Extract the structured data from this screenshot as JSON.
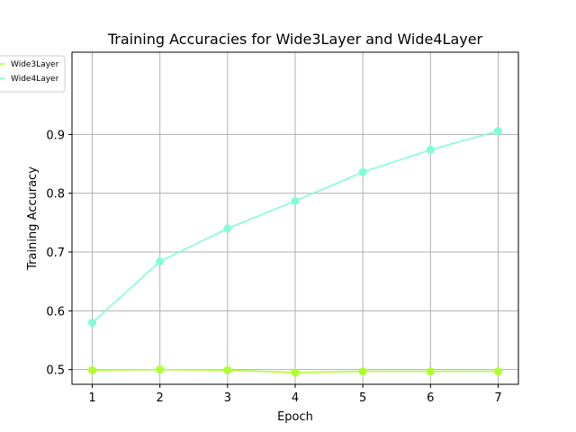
{
  "chart_data": {
    "type": "line",
    "title": "Training Accuracies for Wide3Layer and Wide4Layer",
    "xlabel": "Epoch",
    "ylabel": "Training Accuracy",
    "x": [
      1,
      2,
      3,
      4,
      5,
      6,
      7
    ],
    "xlim": [
      0.7,
      7.3
    ],
    "ylim": [
      0.475,
      1.04
    ],
    "xticks": [
      1,
      2,
      3,
      4,
      5,
      6,
      7
    ],
    "yticks": [
      0.5,
      0.6,
      0.7,
      0.8,
      0.9
    ],
    "ytick_labels": [
      "0.5",
      "0.6",
      "0.7",
      "0.8",
      "0.9"
    ],
    "grid": true,
    "legend_position": "top-left",
    "series": [
      {
        "name": "Wide3Layer",
        "color": "#adff2f",
        "values": [
          0.499,
          0.5,
          0.499,
          0.495,
          0.497,
          0.497,
          0.497
        ]
      },
      {
        "name": "Wide4Layer",
        "color": "#7fffd4",
        "values": [
          0.58,
          0.684,
          0.74,
          0.787,
          0.836,
          0.874,
          0.906
        ]
      }
    ]
  }
}
